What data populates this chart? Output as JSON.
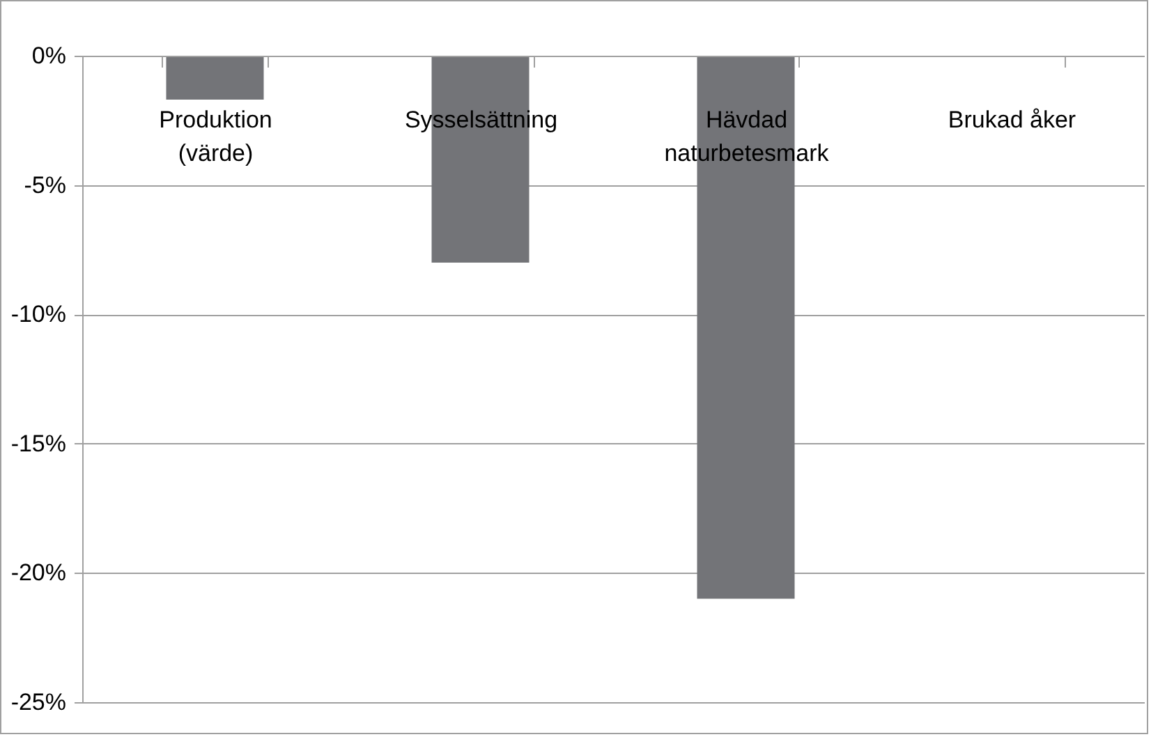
{
  "chart_data": {
    "type": "bar",
    "categories": [
      "Produktion (värde)",
      "Sysselsättning",
      "Hävdad naturbetesmark",
      "Brukad åker"
    ],
    "values": [
      -1.7,
      -8.0,
      -21.0,
      0
    ],
    "color": "#737478",
    "ylim": [
      -25,
      0
    ],
    "yticks": [
      {
        "value": -25,
        "label": "-25%"
      },
      {
        "value": -20,
        "label": "-20%"
      },
      {
        "value": -15,
        "label": "-15%"
      },
      {
        "value": -10,
        "label": "-10%"
      },
      {
        "value": -5,
        "label": "-5%"
      },
      {
        "value": 0,
        "label": "0%"
      }
    ],
    "grid": "y"
  }
}
